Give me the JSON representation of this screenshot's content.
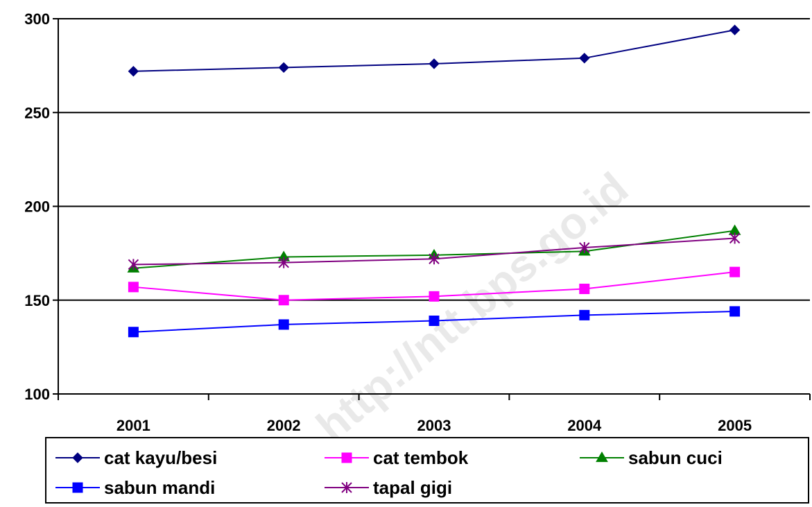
{
  "chart_data": {
    "type": "line",
    "title": "",
    "xlabel": "",
    "ylabel": "",
    "categories": [
      "2001",
      "2002",
      "2003",
      "2004",
      "2005"
    ],
    "ylim": [
      100,
      300
    ],
    "yticks": [
      100,
      150,
      200,
      250,
      300
    ],
    "grid": "horizontal major gridlines",
    "legend_position": "bottom",
    "series": [
      {
        "name": "cat kayu/besi",
        "color": "#000080",
        "marker": "diamond",
        "values": [
          272,
          274,
          276,
          279,
          294
        ]
      },
      {
        "name": "cat tembok",
        "color": "#FF00FF",
        "marker": "square",
        "values": [
          157,
          150,
          152,
          156,
          165
        ]
      },
      {
        "name": "sabun cuci",
        "color": "#008000",
        "marker": "triangle",
        "values": [
          167,
          173,
          174,
          176,
          187
        ]
      },
      {
        "name": "sabun mandi",
        "color": "#0000FF",
        "marker": "square",
        "values": [
          133,
          137,
          139,
          142,
          144
        ]
      },
      {
        "name": "tapal gigi",
        "color": "#800080",
        "marker": "star",
        "values": [
          169,
          170,
          172,
          178,
          183
        ]
      }
    ],
    "watermark": "http://ntt.bps.go.id"
  }
}
